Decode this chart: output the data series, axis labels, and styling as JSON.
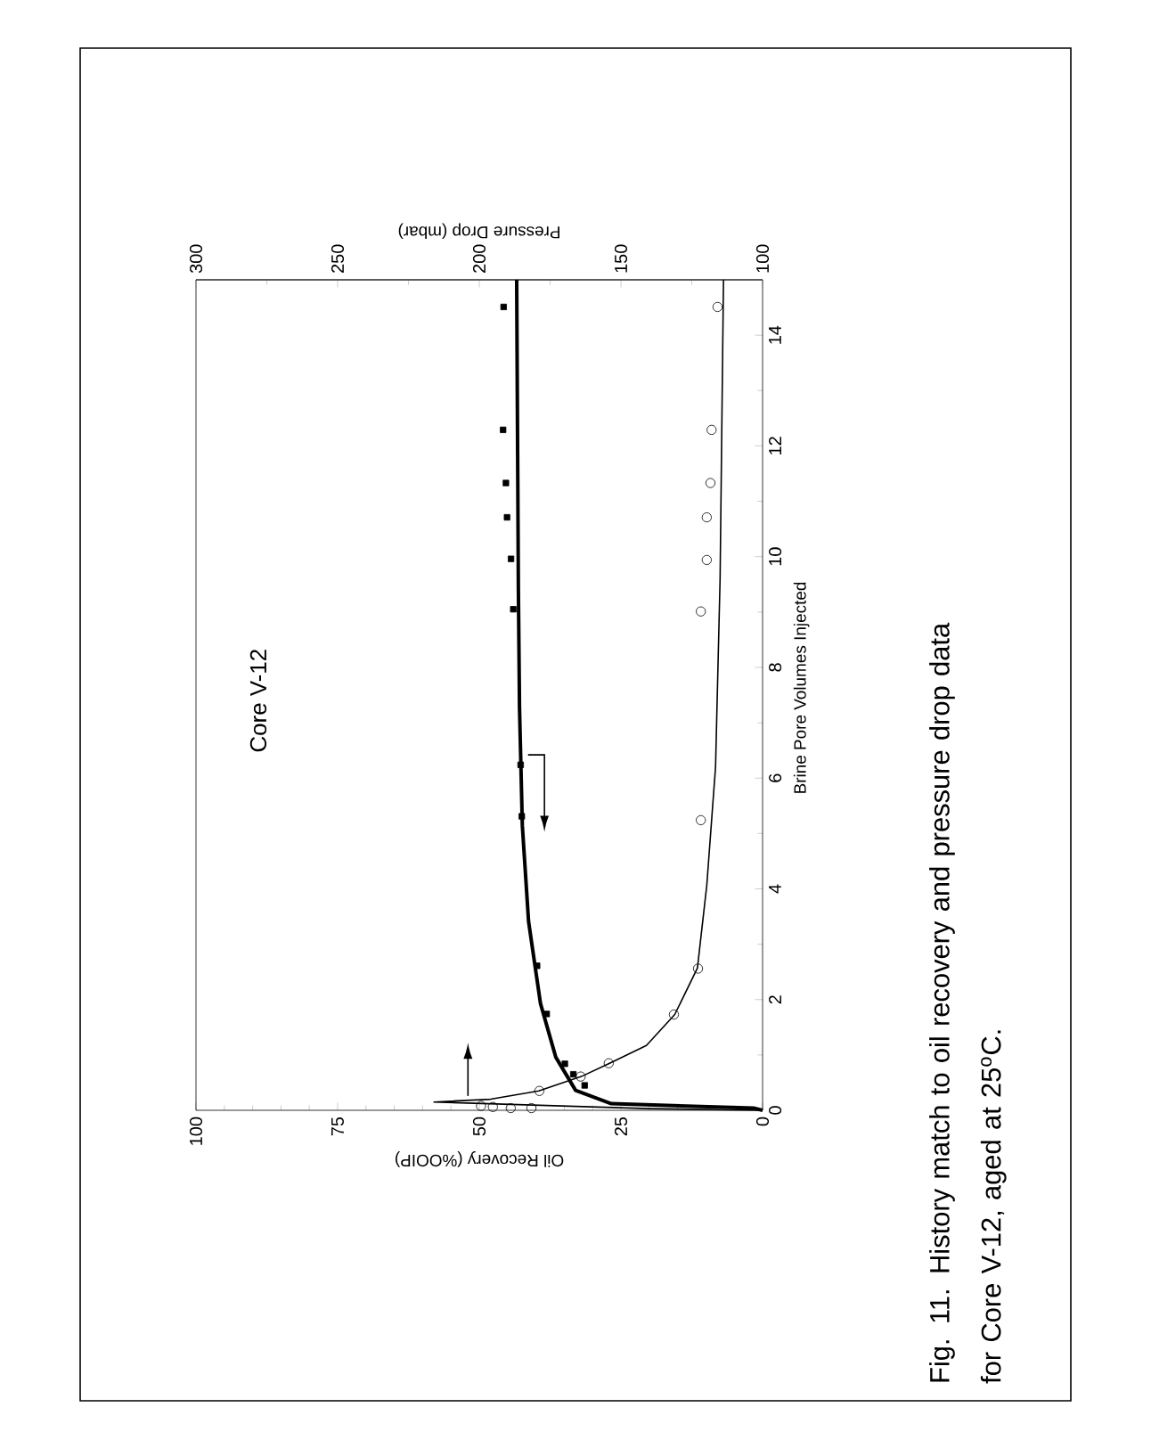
{
  "chart_data": {
    "type": "line",
    "xlabel": "Oil Recovery (%OOIP)",
    "x2label": "Pressure Drop (mbar)",
    "ylabel": "Brine Pore Volumes Injected",
    "xlim": [
      100,
      0
    ],
    "xticks": [
      100,
      75,
      50,
      25,
      0
    ],
    "x2lim": [
      300,
      100
    ],
    "x2ticks": [
      300,
      250,
      200,
      150,
      100
    ],
    "ylim": [
      0,
      15
    ],
    "yticks": [
      0,
      2,
      4,
      6,
      8,
      10,
      12,
      14
    ],
    "grid": false,
    "series": [
      {
        "type": "scatter",
        "marker": "square",
        "color": "#000000",
        "x": [
          45.7,
          45.8,
          45.3,
          45.1,
          44.4,
          44.0,
          42.7,
          42.5,
          39.8,
          38.1,
          34.9,
          33.4,
          31.4
        ],
        "values": [
          14.51,
          12.29,
          11.33,
          10.71,
          9.96,
          9.05,
          6.24,
          5.31,
          2.61,
          1.74,
          0.84,
          0.65,
          0.45
        ]
      },
      {
        "marker": "none",
        "color": "#000000",
        "x": [
          0,
          1.6,
          26.7,
          33.0,
          36.5,
          39.2,
          41.3,
          42.4,
          42.9,
          43.1,
          43.4
        ],
        "values": [
          0,
          0.04,
          0.12,
          0.36,
          0.96,
          1.93,
          3.41,
          5.14,
          7.27,
          9.42,
          15
        ]
      },
      {
        "type": "scatter",
        "marker": "circle",
        "axis": "x2",
        "color": "#000000",
        "x": [
          115.9,
          118.0,
          118.4,
          119.7,
          119.7,
          121.8,
          121.8,
          122.8,
          131.3,
          154.3,
          164.2,
          178.8,
          199.4,
          195.2,
          188.9,
          181.6
        ],
        "values": [
          14.51,
          12.29,
          11.33,
          10.71,
          9.94,
          9.01,
          5.24,
          2.56,
          1.73,
          0.85,
          0.61,
          0.35,
          0.08,
          0.06,
          0.04,
          0.04
        ]
      },
      {
        "marker": "none",
        "axis": "x2",
        "color": "#000000",
        "x": [
          100,
          140,
          216,
          196,
          179,
          164,
          154,
          141,
          131,
          123,
          119.7,
          116.6,
          115,
          113.8
        ],
        "values": [
          0,
          0.03,
          0.15,
          0.2,
          0.35,
          0.61,
          0.85,
          1.17,
          1.73,
          2.57,
          4.06,
          6.2,
          9.6,
          15
        ]
      }
    ],
    "annotations": [
      "Core V-12",
      "Fig. 11. History match to oil recovery and pressure drop data for Core V-12, aged at 25$^{o}$C."
    ]
  }
}
